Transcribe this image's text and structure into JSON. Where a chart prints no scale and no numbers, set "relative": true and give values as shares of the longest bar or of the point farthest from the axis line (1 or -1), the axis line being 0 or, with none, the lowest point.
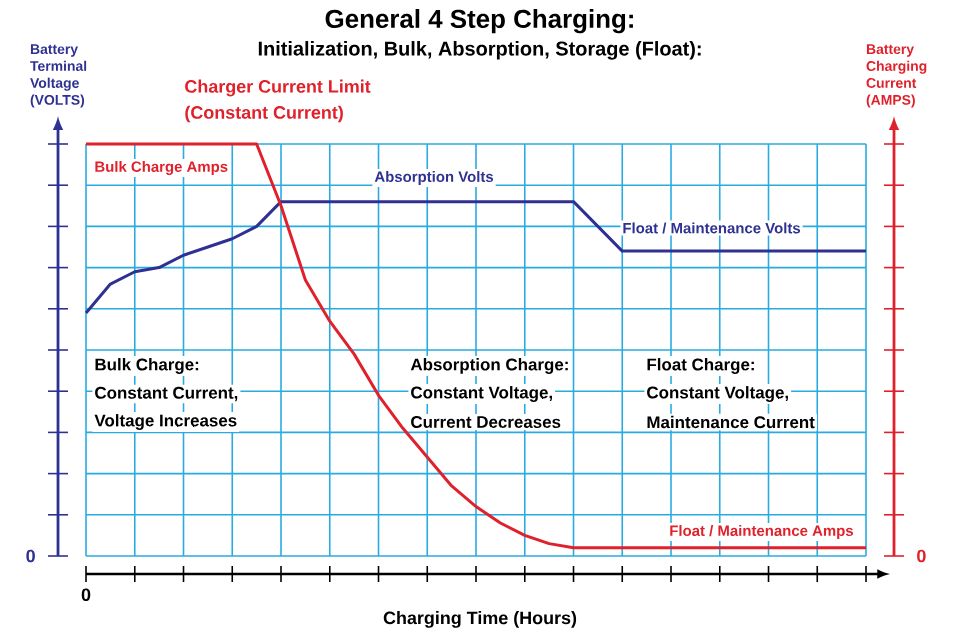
{
  "chart_data": {
    "type": "line",
    "relative": true,
    "grid": true,
    "title": "General 4 Step Charging:",
    "subtitle": "Initialization, Bulk, Absorption, Storage (Float):",
    "xlabel": "Charging Time (Hours)",
    "ylabel": "Battery Terminal Voltage (VOLTS)",
    "y2label": "Battery Charging Current (AMPS)",
    "categories": [
      null,
      null,
      null,
      null,
      null,
      null,
      null,
      null,
      null,
      null,
      null,
      null,
      null,
      null,
      null,
      null,
      null,
      null,
      null,
      null,
      null,
      null,
      null,
      null,
      null,
      null,
      null,
      null,
      null,
      null,
      null,
      null,
      null
    ],
    "series": [
      {
        "color": "#2e3192",
        "values": [
          0.59,
          0.66,
          0.69,
          0.7,
          0.73,
          0.75,
          0.77,
          0.8,
          0.86,
          0.86,
          0.86,
          0.86,
          0.86,
          0.86,
          0.86,
          0.86,
          0.86,
          0.86,
          0.86,
          0.86,
          0.86,
          0.8,
          0.74,
          0.74,
          0.74,
          0.74,
          0.74,
          0.74,
          0.74,
          0.74,
          0.74,
          0.74,
          0.74
        ]
      },
      {
        "color": "#e0202a",
        "values": [
          1,
          1,
          1,
          1,
          1,
          1,
          1,
          1,
          0.85,
          0.67,
          0.57,
          0.49,
          0.39,
          0.31,
          0.24,
          0.17,
          0.12,
          0.08,
          0.05,
          0.03,
          0.02,
          0.02,
          0.02,
          0.02,
          0.02,
          0.02,
          0.02,
          0.02,
          0.02,
          0.02,
          0.02,
          0.02,
          0.02
        ]
      }
    ],
    "annotations": [
      "Charger Current Limit",
      "(Constant Current)",
      "Bulk Charge Amps",
      "Absorption Volts",
      "Float / Maintenance Volts",
      "Bulk Charge:",
      "Constant Current,",
      "Voltage Increases",
      "Absorption Charge:",
      "Constant Voltage,",
      "Current Decreases",
      "Float Charge:",
      "Constant Voltage,",
      "Maintenance Current",
      "Float / Maintenance Amps",
      "0",
      "0",
      "0"
    ]
  }
}
